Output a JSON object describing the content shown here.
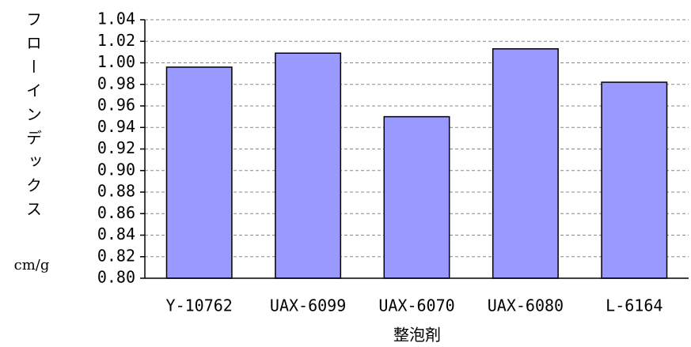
{
  "chart_data": {
    "type": "bar",
    "y_label": "フローインデックス",
    "y_unit": "cm/g",
    "x_label": "整泡剤",
    "categories": [
      "Y-10762",
      "UAX-6099",
      "UAX-6070",
      "UAX-6080",
      "L-6164"
    ],
    "values": [
      0.996,
      1.009,
      0.95,
      1.013,
      0.982
    ],
    "color": "#9999ff",
    "ylim": [
      0.8,
      1.04
    ],
    "yticks": [
      {
        "value": 0.8,
        "label": "0.80"
      },
      {
        "value": 0.82,
        "label": "0.82"
      },
      {
        "value": 0.84,
        "label": "0.84"
      },
      {
        "value": 0.86,
        "label": "0.86"
      },
      {
        "value": 0.88,
        "label": "0.88"
      },
      {
        "value": 0.9,
        "label": "0.90"
      },
      {
        "value": 0.92,
        "label": "0.92"
      },
      {
        "value": 0.94,
        "label": "0.94"
      },
      {
        "value": 0.96,
        "label": "0.96"
      },
      {
        "value": 0.98,
        "label": "0.98"
      },
      {
        "value": 1.0,
        "label": "1.00"
      },
      {
        "value": 1.02,
        "label": "1.02"
      },
      {
        "value": 1.04,
        "label": "1.04"
      }
    ],
    "grid": true
  }
}
